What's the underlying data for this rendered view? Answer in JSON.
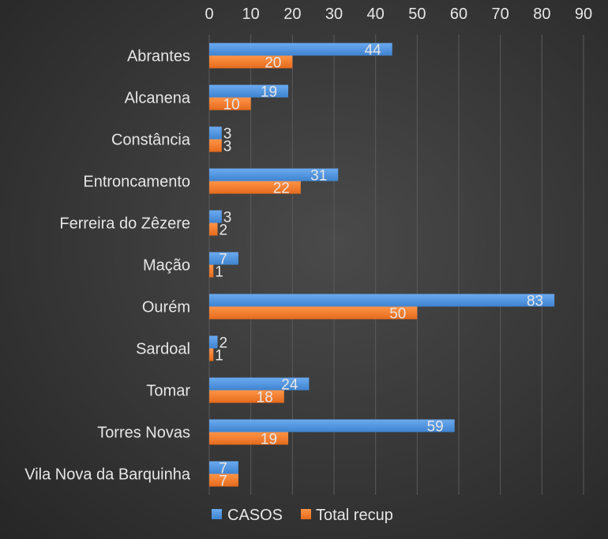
{
  "chart_data": {
    "type": "bar",
    "orientation": "horizontal",
    "title": "",
    "xlabel": "",
    "ylabel": "",
    "xlim": [
      0,
      90
    ],
    "ticks": [
      0,
      10,
      20,
      30,
      40,
      50,
      60,
      70,
      80,
      90
    ],
    "x_axis_position": "top",
    "grid": true,
    "legend_position": "bottom",
    "data_labels": true,
    "categories": [
      "Abrantes",
      "Alcanena",
      "Constância",
      "Entroncamento",
      "Ferreira do Zêzere",
      "Mação",
      "Ourém",
      "Sardoal",
      "Tomar",
      "Torres Novas",
      "Vila Nova da Barquinha"
    ],
    "series": [
      {
        "name": "CASOS",
        "color": "#4a90d9",
        "values": [
          44,
          19,
          3,
          31,
          3,
          7,
          83,
          2,
          24,
          59,
          7
        ]
      },
      {
        "name": "Total recup",
        "color": "#f07a2a",
        "values": [
          20,
          10,
          3,
          22,
          2,
          1,
          50,
          1,
          18,
          19,
          7
        ]
      }
    ]
  }
}
